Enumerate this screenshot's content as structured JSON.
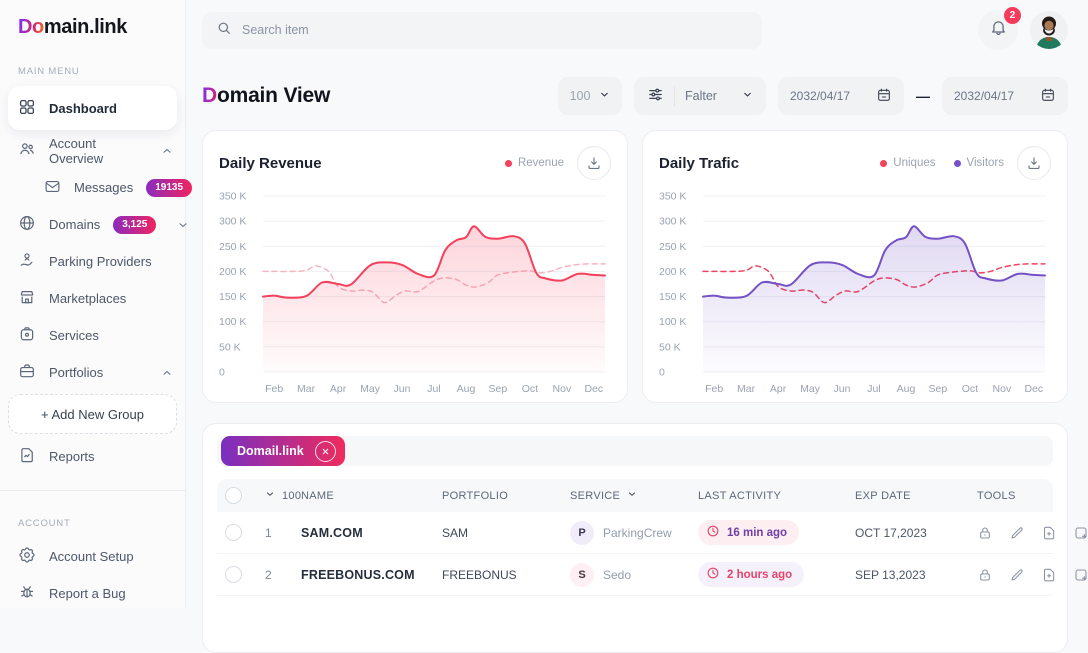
{
  "sidebar": {
    "logo": {
      "prefix": "Do",
      "suffix": "main.link"
    },
    "section1_label": "MAIN MENU",
    "section2_label": "ACCOUNT",
    "items": {
      "dashboard": "Dashboard",
      "account_overview": "Account Overview",
      "messages": "Messages",
      "messages_badge": "19135",
      "domains": "Domains",
      "domains_badge": "3,125",
      "parking_providers": "Parking Providers",
      "marketplaces": "Marketplaces",
      "services": "Services",
      "portfolios": "Portfolios",
      "add_new_group": "+ Add New Group",
      "reports": "Reports",
      "account_setup": "Account Setup",
      "report_a_bug": "Report a Bug"
    }
  },
  "topbar": {
    "search_placeholder": "Search item",
    "notification_count": "2"
  },
  "header": {
    "title_prefix": "D",
    "title_rest": "omain View",
    "page_size": "100",
    "filter_label": "Falter",
    "date_from": "2032/04/17",
    "date_separator": "—",
    "date_to": "2032/04/17"
  },
  "chart_data": [
    {
      "type": "area",
      "title": "Daily Revenue",
      "legend": [
        {
          "label": "Revenue",
          "color": "#f5405c"
        }
      ],
      "x_labels": [
        "Feb",
        "Mar",
        "Apr",
        "May",
        "Jun",
        "Jul",
        "Aug",
        "Sep",
        "Oct",
        "Nov",
        "Dec"
      ],
      "y_ticks": [
        {
          "value": 350,
          "label": "350 K"
        },
        {
          "value": 300,
          "label": "300 K"
        },
        {
          "value": 250,
          "label": "250 K"
        },
        {
          "value": 200,
          "label": "200 K"
        },
        {
          "value": 150,
          "label": "150 K"
        },
        {
          "value": 100,
          "label": "100 K"
        },
        {
          "value": 50,
          "label": "50 K"
        },
        {
          "value": 0,
          "label": "0"
        }
      ],
      "ylim": [
        0,
        350
      ],
      "unit": "K",
      "grid": true,
      "legend_position": "top-right",
      "series": [
        {
          "name": "Trend",
          "style": "dashed",
          "color": "#f8b3c0",
          "fill": false,
          "points": [
            [
              -0.35,
              200
            ],
            [
              0,
              200
            ],
            [
              0.6,
              200
            ],
            [
              1,
              202
            ],
            [
              1.3,
              211
            ],
            [
              1.7,
              200
            ],
            [
              2,
              170
            ],
            [
              2.4,
              161
            ],
            [
              2.8,
              163
            ],
            [
              3.1,
              158
            ],
            [
              3.45,
              138
            ],
            [
              3.8,
              152
            ],
            [
              4.1,
              161
            ],
            [
              4.5,
              160
            ],
            [
              5,
              181
            ],
            [
              5.3,
              187
            ],
            [
              5.7,
              184
            ],
            [
              6,
              173
            ],
            [
              6.3,
              169
            ],
            [
              6.7,
              178
            ],
            [
              7,
              193
            ],
            [
              7.5,
              199
            ],
            [
              8,
              201
            ],
            [
              8.35,
              197
            ],
            [
              8.7,
              201
            ],
            [
              9,
              208
            ],
            [
              9.4,
              213
            ],
            [
              9.8,
              215
            ],
            [
              10.35,
              215
            ]
          ]
        },
        {
          "name": "Revenue",
          "style": "solid",
          "color": "#f5405c",
          "fill": true,
          "points": [
            [
              -0.35,
              150
            ],
            [
              0,
              152
            ],
            [
              0.4,
              148
            ],
            [
              1,
              151
            ],
            [
              1.5,
              178
            ],
            [
              2,
              175
            ],
            [
              2.4,
              174
            ],
            [
              3,
              212
            ],
            [
              3.5,
              218
            ],
            [
              4,
              213
            ],
            [
              4.5,
              195
            ],
            [
              5,
              192
            ],
            [
              5.35,
              242
            ],
            [
              5.7,
              262
            ],
            [
              6,
              268
            ],
            [
              6.25,
              290
            ],
            [
              6.6,
              269
            ],
            [
              7,
              265
            ],
            [
              7.5,
              270
            ],
            [
              7.85,
              255
            ],
            [
              8.2,
              197
            ],
            [
              8.5,
              186
            ],
            [
              9,
              182
            ],
            [
              9.5,
              195
            ],
            [
              10,
              193
            ],
            [
              10.35,
              192
            ]
          ]
        }
      ]
    },
    {
      "type": "area",
      "title": "Daily Trafic",
      "legend": [
        {
          "label": "Uniques",
          "color": "#f5405c"
        },
        {
          "label": "Visitors",
          "color": "#7452c5"
        }
      ],
      "x_labels": [
        "Feb",
        "Mar",
        "Apr",
        "May",
        "Jun",
        "Jul",
        "Aug",
        "Sep",
        "Oct",
        "Nov",
        "Dec"
      ],
      "y_ticks": [
        {
          "value": 350,
          "label": "350 K"
        },
        {
          "value": 300,
          "label": "300 K"
        },
        {
          "value": 250,
          "label": "250 K"
        },
        {
          "value": 200,
          "label": "200 K"
        },
        {
          "value": 150,
          "label": "150 K"
        },
        {
          "value": 100,
          "label": "100 K"
        },
        {
          "value": 50,
          "label": "50 K"
        },
        {
          "value": 0,
          "label": "0"
        }
      ],
      "ylim": [
        0,
        350
      ],
      "unit": "K",
      "grid": true,
      "legend_position": "top-right",
      "series": [
        {
          "name": "Uniques",
          "style": "dashed",
          "color": "#f0435f",
          "fill": false,
          "points": [
            [
              -0.35,
              200
            ],
            [
              0,
              200
            ],
            [
              0.6,
              200
            ],
            [
              1,
              202
            ],
            [
              1.3,
              211
            ],
            [
              1.7,
              200
            ],
            [
              2,
              170
            ],
            [
              2.4,
              161
            ],
            [
              2.8,
              163
            ],
            [
              3.1,
              158
            ],
            [
              3.45,
              138
            ],
            [
              3.8,
              152
            ],
            [
              4.1,
              161
            ],
            [
              4.5,
              160
            ],
            [
              5,
              181
            ],
            [
              5.3,
              187
            ],
            [
              5.7,
              184
            ],
            [
              6,
              173
            ],
            [
              6.3,
              169
            ],
            [
              6.7,
              178
            ],
            [
              7,
              193
            ],
            [
              7.5,
              199
            ],
            [
              8,
              201
            ],
            [
              8.35,
              197
            ],
            [
              8.7,
              201
            ],
            [
              9,
              208
            ],
            [
              9.4,
              213
            ],
            [
              9.8,
              215
            ],
            [
              10.35,
              215
            ]
          ]
        },
        {
          "name": "Visitors",
          "style": "solid",
          "color": "#7452c5",
          "fill": true,
          "points": [
            [
              -0.35,
              150
            ],
            [
              0,
              152
            ],
            [
              0.4,
              148
            ],
            [
              1,
              151
            ],
            [
              1.5,
              178
            ],
            [
              2,
              175
            ],
            [
              2.4,
              174
            ],
            [
              3,
              212
            ],
            [
              3.5,
              218
            ],
            [
              4,
              213
            ],
            [
              4.5,
              195
            ],
            [
              5,
              192
            ],
            [
              5.35,
              242
            ],
            [
              5.7,
              262
            ],
            [
              6,
              268
            ],
            [
              6.25,
              290
            ],
            [
              6.6,
              269
            ],
            [
              7,
              265
            ],
            [
              7.5,
              270
            ],
            [
              7.85,
              255
            ],
            [
              8.2,
              197
            ],
            [
              8.5,
              186
            ],
            [
              9,
              182
            ],
            [
              9.5,
              195
            ],
            [
              10,
              193
            ],
            [
              10.35,
              192
            ]
          ]
        }
      ]
    }
  ],
  "table": {
    "filter_chip": "Domail.link",
    "columns": {
      "count": "100",
      "name": "NAME",
      "portfolio": "PORTFOLIO",
      "service": "SERVICE",
      "last_activity": "LAST ACTIVITY",
      "exp_date": "EXP DATE",
      "tools": "TOOLS"
    },
    "rows": [
      {
        "num": "1",
        "name": "SAM.COM",
        "portfolio": "SAM",
        "service_initial": "P",
        "service_name": "ParkingCrew",
        "last_activity": "16 min ago",
        "exp_date": "OCT 17,2023"
      },
      {
        "num": "2",
        "name": "FREEBONUS.COM",
        "portfolio": "FREEBONUS",
        "service_initial": "S",
        "service_name": "Sedo",
        "last_activity": "2 hours ago",
        "exp_date": "SEP 13,2023"
      }
    ]
  }
}
